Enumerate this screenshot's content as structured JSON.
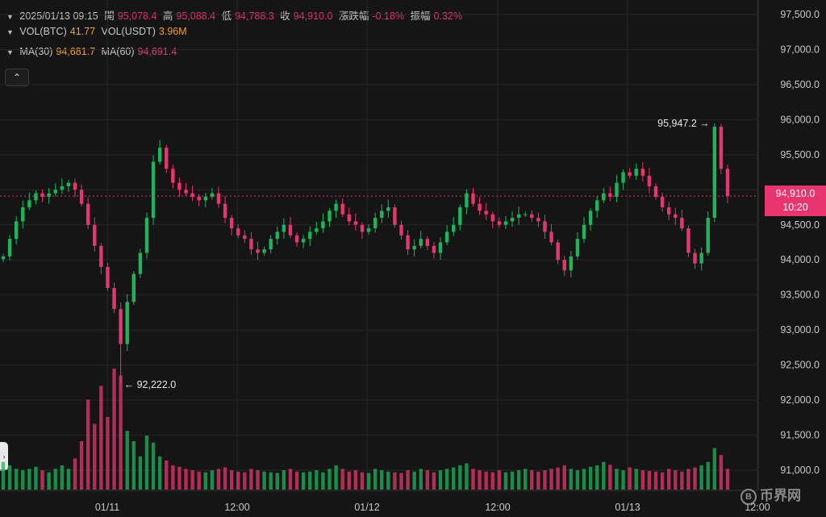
{
  "header": {
    "datetime": "2025/01/13 09:15",
    "open_label": "開",
    "open": "95,078.4",
    "high_label": "高",
    "high": "95,088.4",
    "low_label": "低",
    "low": "94,788.3",
    "close_label": "收",
    "close": "94,910.0",
    "change_label": "漲跌幅",
    "change": "-0.18%",
    "amplitude_label": "振幅",
    "amplitude": "0.32%",
    "vol_btc_label": "VOL(BTC)",
    "vol_btc": "41.77",
    "vol_usdt_label": "VOL(USDT)",
    "vol_usdt": "3.96M",
    "ma30_label": "MA(30)",
    "ma30": "94,681.7",
    "ma60_label": "MA(60)",
    "ma60": "94,691.4"
  },
  "controls": {
    "collapse_icon": "chevron-up-icon",
    "side_icon": "chevron-right-icon",
    "collapse_glyph": "⌃",
    "side_glyph": "›"
  },
  "current_price": {
    "value": "94,910.0",
    "countdown": "10:20"
  },
  "watermark": {
    "text": "币界网",
    "coin": "B"
  },
  "colors": {
    "up": "#1fb45c",
    "down": "#e8356d",
    "background": "#151515",
    "grid": "#262626"
  },
  "chart_data": {
    "type": "candlestick",
    "y_ticks": [
      "97,500.0",
      "97,000.0",
      "96,500.0",
      "96,000.0",
      "95,500.0",
      "95,000.0",
      "94,500.0",
      "94,000.0",
      "93,500.0",
      "93,000.0",
      "92,500.0",
      "92,000.0",
      "91,500.0",
      "91,000.0"
    ],
    "ylim": [
      90800,
      97700
    ],
    "x_ticks": [
      "01/11",
      "12:00",
      "01/12",
      "12:00",
      "01/13",
      "12:00"
    ],
    "annotations": {
      "max": "95,947.2",
      "min": "92,222.0"
    },
    "max_value": 95947.2,
    "min_value": 92222.0,
    "last_close": 94910.0,
    "close_series": [
      94050,
      94300,
      94550,
      94750,
      94850,
      94950,
      94900,
      94950,
      95000,
      95050,
      95100,
      95000,
      94800,
      94500,
      94200,
      93900,
      93600,
      93300,
      92800,
      93400,
      93800,
      94100,
      94600,
      95400,
      95600,
      95300,
      95100,
      95000,
      94950,
      94900,
      94850,
      94900,
      94950,
      94800,
      94600,
      94450,
      94350,
      94300,
      94150,
      94100,
      94150,
      94300,
      94400,
      94500,
      94350,
      94250,
      94300,
      94400,
      94450,
      94550,
      94700,
      94800,
      94650,
      94550,
      94500,
      94400,
      94450,
      94600,
      94700,
      94750,
      94500,
      94350,
      94150,
      94200,
      94300,
      94200,
      94100,
      94250,
      94400,
      94500,
      94750,
      94950,
      94800,
      94700,
      94650,
      94550,
      94500,
      94550,
      94600,
      94650,
      94650,
      94600,
      94550,
      94400,
      94250,
      94000,
      93850,
      94050,
      94300,
      94500,
      94700,
      94850,
      94950,
      94900,
      95100,
      95250,
      95200,
      95300,
      95200,
      95050,
      94900,
      94750,
      94650,
      94600,
      94450,
      94100,
      93950,
      94100,
      94600,
      95900,
      95300,
      94910
    ],
    "volume_series": [
      40,
      35,
      30,
      28,
      30,
      33,
      28,
      25,
      30,
      35,
      30,
      45,
      70,
      130,
      95,
      150,
      105,
      175,
      165,
      85,
      70,
      48,
      78,
      68,
      48,
      42,
      35,
      33,
      30,
      28,
      26,
      25,
      28,
      30,
      32,
      28,
      26,
      25,
      30,
      28,
      26,
      25,
      24,
      28,
      30,
      26,
      25,
      26,
      28,
      25,
      30,
      35,
      30,
      26,
      28,
      25,
      24,
      30,
      28,
      26,
      25,
      24,
      28,
      26,
      30,
      28,
      25,
      28,
      30,
      32,
      35,
      38,
      30,
      28,
      26,
      25,
      28,
      25,
      26,
      28,
      30,
      28,
      26,
      28,
      30,
      32,
      35,
      30,
      28,
      30,
      33,
      35,
      40,
      36,
      30,
      28,
      32,
      30,
      28,
      27,
      26,
      25,
      30,
      28,
      26,
      30,
      32,
      35,
      40,
      60,
      50,
      30
    ]
  }
}
